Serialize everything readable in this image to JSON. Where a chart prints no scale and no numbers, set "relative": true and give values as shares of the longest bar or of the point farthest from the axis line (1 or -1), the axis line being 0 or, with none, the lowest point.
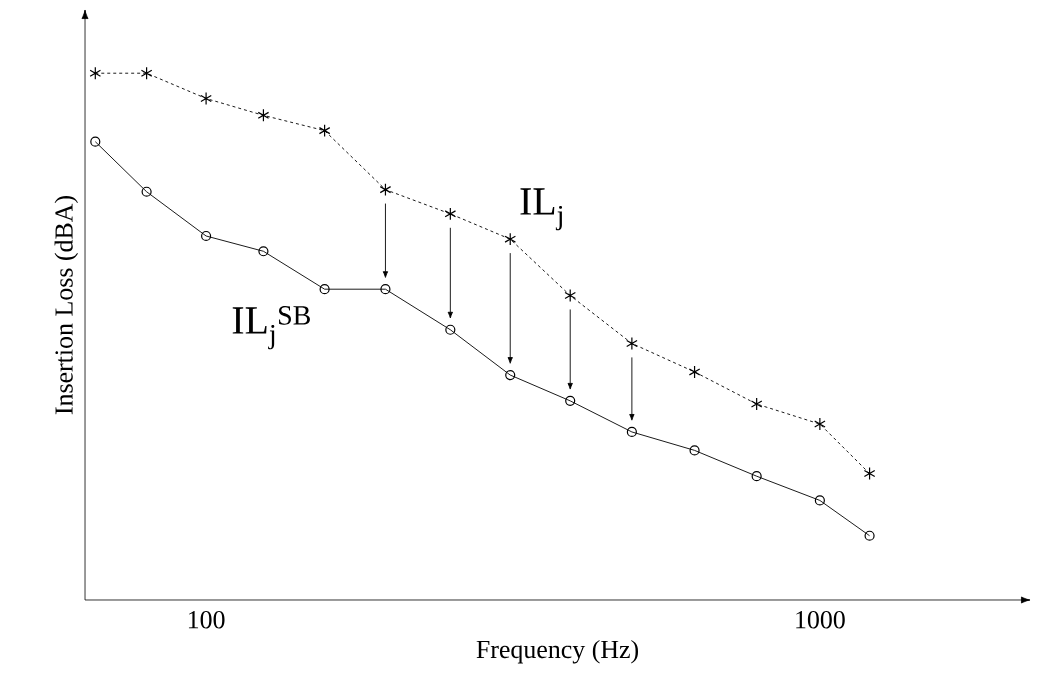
{
  "chart_data": {
    "type": "line",
    "xlabel": "Frequency (Hz)",
    "ylabel": "Insertion Loss (dBA)",
    "relative": true,
    "log": "x",
    "x": [
      66,
      80,
      100,
      124,
      156,
      196,
      250,
      313,
      392,
      494,
      625,
      789,
      1000,
      1205
    ],
    "xlim": [
      63.5,
      2200
    ],
    "xticks": [
      100,
      1000
    ],
    "grid": false,
    "legend": false,
    "series": [
      {
        "name": "IL$_{j}$",
        "color": "#000000",
        "marker": "cross",
        "line_style": "dashed",
        "values": [
          1.0,
          1.0,
          0.952,
          0.92,
          0.891,
          0.779,
          0.733,
          0.685,
          0.578,
          0.487,
          0.433,
          0.372,
          0.334,
          0.24
        ]
      },
      {
        "name": "IL$_{j}$$^{SB}$",
        "color": "#000000",
        "marker": "circle",
        "line_style": "solid",
        "values": [
          0.87,
          0.775,
          0.691,
          0.662,
          0.59,
          0.59,
          0.513,
          0.427,
          0.378,
          0.319,
          0.284,
          0.235,
          0.189,
          0.122
        ]
      }
    ]
  }
}
